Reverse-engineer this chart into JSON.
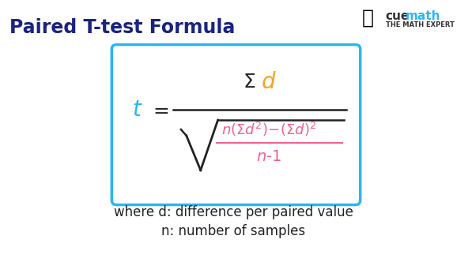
{
  "title": "Paired T-test Formula",
  "title_color": "#1a237e",
  "title_fontsize": 17,
  "bg_color": "#ffffff",
  "box_edge_color": "#29b6f6",
  "box_facecolor": "#ffffff",
  "t_color": "#29b6f6",
  "numerator_sigma_color": "#222222",
  "numerator_d_color": "#f5a623",
  "denominator_color": "#f06292",
  "line_color": "#222222",
  "where_text": "where d: difference per paired value",
  "where_text2": "n: number of samples",
  "where_color": "#222222",
  "where_fontsize": 12,
  "cuemath_color": "#29b6f6",
  "expert_color": "#333333",
  "cuemath_fontsize": 11,
  "expert_fontsize": 6
}
